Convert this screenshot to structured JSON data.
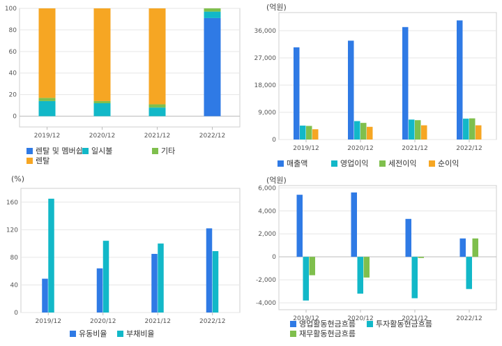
{
  "charts": [
    {
      "type": "bar",
      "stacked": true,
      "unit": "",
      "categories": [
        "2019/12",
        "2020/12",
        "2021/12",
        "2022/12"
      ],
      "yticks": [
        0,
        20,
        40,
        60,
        80,
        100
      ],
      "ylim": [
        -10,
        100
      ],
      "grid": true,
      "series": [
        {
          "name": "렌탈 및 멤버쉽",
          "color": "#2f7ae5",
          "values": [
            0,
            0,
            0,
            91
          ]
        },
        {
          "name": "일시불",
          "color": "#12b8c8",
          "values": [
            14,
            12,
            8,
            6
          ]
        },
        {
          "name": "기타",
          "color": "#7fbf4d",
          "values": [
            3,
            2,
            3,
            3
          ]
        },
        {
          "name": "렌탈",
          "color": "#f6a623",
          "values": [
            83,
            86,
            89,
            0
          ]
        }
      ],
      "legend_labels": [
        "렌탈 및 멤버쉽",
        "일시불",
        "기타",
        "렌탈"
      ]
    },
    {
      "type": "bar",
      "stacked": false,
      "unit": "(억원)",
      "categories": [
        "2019/12",
        "2020/12",
        "2021/12",
        "2022/12"
      ],
      "yticks": [
        0,
        9000,
        18000,
        27000,
        36000
      ],
      "ytick_labels": [
        "0",
        "9,000",
        "18,000",
        "27,000",
        "36,000"
      ],
      "ylim": [
        0,
        42000
      ],
      "grid": true,
      "series": [
        {
          "name": "매출액",
          "color": "#2f7ae5",
          "values": [
            30500,
            32700,
            37200,
            39400
          ]
        },
        {
          "name": "영업이익",
          "color": "#12b8c8",
          "values": [
            4600,
            6100,
            6600,
            6900
          ]
        },
        {
          "name": "세전이익",
          "color": "#7fbf4d",
          "values": [
            4500,
            5500,
            6400,
            7000
          ]
        },
        {
          "name": "순이익",
          "color": "#f6a623",
          "values": [
            3400,
            4200,
            4700,
            4700
          ]
        }
      ],
      "legend_labels": [
        "매출액",
        "영업이익",
        "세전이익",
        "순이익"
      ]
    },
    {
      "type": "bar",
      "stacked": false,
      "unit": "(%)",
      "categories": [
        "2019/12",
        "2020/12",
        "2021/12",
        "2022/12"
      ],
      "yticks": [
        0,
        40,
        80,
        120,
        160
      ],
      "ylim": [
        0,
        180
      ],
      "grid": true,
      "series": [
        {
          "name": "유동비율",
          "color": "#2f7ae5",
          "values": [
            49,
            64,
            85,
            122
          ]
        },
        {
          "name": "부채비율",
          "color": "#12b8c8",
          "values": [
            165,
            104,
            100,
            89
          ]
        }
      ],
      "legend_labels": [
        "유동비율",
        "부채비율"
      ]
    },
    {
      "type": "bar",
      "stacked": false,
      "unit": "(억원)",
      "categories": [
        "2019/12",
        "2020/12",
        "2021/12",
        "2022/12"
      ],
      "yticks": [
        -4000,
        -2000,
        0,
        2000,
        4000,
        6000
      ],
      "ytick_labels": [
        "-4,000",
        "-2,000",
        "0",
        "2,000",
        "4,000",
        "6,000"
      ],
      "ylim": [
        -4600,
        6200
      ],
      "grid": true,
      "series": [
        {
          "name": "영업활동현금흐름",
          "color": "#2f7ae5",
          "values": [
            5400,
            5600,
            3300,
            1600
          ]
        },
        {
          "name": "투자활동현금흐름",
          "color": "#12b8c8",
          "values": [
            -3800,
            -3200,
            -3600,
            -2800
          ]
        },
        {
          "name": "재무활동현금흐름",
          "color": "#7fbf4d",
          "values": [
            -1600,
            -1800,
            -100,
            1600
          ]
        }
      ],
      "legend_labels": [
        "영업활동현금흐름",
        "투자활동현금흐름",
        "재무활동현금흐름"
      ]
    }
  ]
}
